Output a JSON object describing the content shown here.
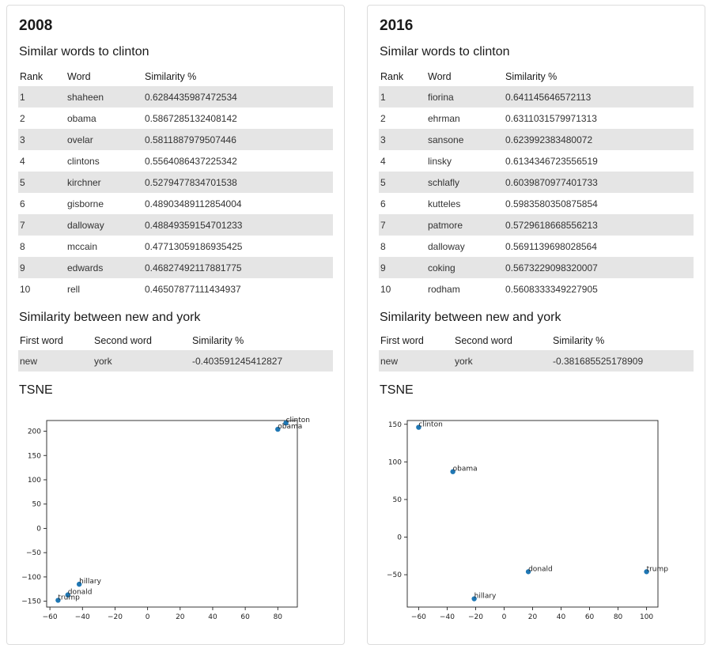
{
  "panels": [
    {
      "year": "2008",
      "similar_heading": "Similar words to clinton",
      "similar_columns": [
        "Rank",
        "Word",
        "Similarity %"
      ],
      "similar_rows": [
        [
          "1",
          "shaheen",
          "0.6284435987472534"
        ],
        [
          "2",
          "obama",
          "0.5867285132408142"
        ],
        [
          "3",
          "ovelar",
          "0.5811887979507446"
        ],
        [
          "4",
          "clintons",
          "0.5564086437225342"
        ],
        [
          "5",
          "kirchner",
          "0.5279477834701538"
        ],
        [
          "6",
          "gisborne",
          "0.48903489112854004"
        ],
        [
          "7",
          "dalloway",
          "0.48849359154701233"
        ],
        [
          "8",
          "mccain",
          "0.47713059186935425"
        ],
        [
          "9",
          "edwards",
          "0.46827492117881775"
        ],
        [
          "10",
          "rell",
          "0.46507877111434937"
        ]
      ],
      "pair_heading": "Similarity between new and york",
      "pair_columns": [
        "First word",
        "Second word",
        "Similarity %"
      ],
      "pair_rows": [
        [
          "new",
          "york",
          "-0.403591245412827"
        ]
      ],
      "tsne_heading": "TSNE"
    },
    {
      "year": "2016",
      "similar_heading": "Similar words to clinton",
      "similar_columns": [
        "Rank",
        "Word",
        "Similarity %"
      ],
      "similar_rows": [
        [
          "1",
          "fiorina",
          "0.641145646572113"
        ],
        [
          "2",
          "ehrman",
          "0.6311031579971313"
        ],
        [
          "3",
          "sansone",
          "0.623992383480072"
        ],
        [
          "4",
          "linsky",
          "0.6134346723556519"
        ],
        [
          "5",
          "schlafly",
          "0.6039870977401733"
        ],
        [
          "6",
          "kutteles",
          "0.5983580350875854"
        ],
        [
          "7",
          "patmore",
          "0.5729618668556213"
        ],
        [
          "8",
          "dalloway",
          "0.5691139698028564"
        ],
        [
          "9",
          "coking",
          "0.5673229098320007"
        ],
        [
          "10",
          "rodham",
          "0.5608333349227905"
        ]
      ],
      "pair_heading": "Similarity between new and york",
      "pair_columns": [
        "First word",
        "Second word",
        "Similarity %"
      ],
      "pair_rows": [
        [
          "new",
          "york",
          "-0.381685525178909"
        ]
      ],
      "tsne_heading": "TSNE"
    }
  ],
  "chart_data": [
    {
      "type": "scatter",
      "title": "",
      "xlabel": "",
      "ylabel": "",
      "xlim": [
        -62,
        92
      ],
      "ylim": [
        -162,
        222
      ],
      "xticks": [
        -60,
        -40,
        -20,
        0,
        20,
        40,
        60,
        80
      ],
      "yticks": [
        -150,
        -100,
        -50,
        0,
        50,
        100,
        150,
        200
      ],
      "point_color": "#1f77b4",
      "points": [
        {
          "label": "clinton",
          "x": 85,
          "y": 217
        },
        {
          "label": "obama",
          "x": 80,
          "y": 204
        },
        {
          "label": "hillary",
          "x": -42,
          "y": -115
        },
        {
          "label": "donald",
          "x": -49,
          "y": -137
        },
        {
          "label": "trump",
          "x": -55,
          "y": -148
        }
      ]
    },
    {
      "type": "scatter",
      "title": "",
      "xlabel": "",
      "ylabel": "",
      "xlim": [
        -68,
        108
      ],
      "ylim": [
        -93,
        155
      ],
      "xticks": [
        -60,
        -40,
        -20,
        0,
        20,
        40,
        60,
        80,
        100
      ],
      "yticks": [
        -50,
        0,
        50,
        100,
        150
      ],
      "point_color": "#1f77b4",
      "points": [
        {
          "label": "clinton",
          "x": -60,
          "y": 146
        },
        {
          "label": "obama",
          "x": -36,
          "y": 87
        },
        {
          "label": "donald",
          "x": 17,
          "y": -46
        },
        {
          "label": "trump",
          "x": 100,
          "y": -46
        },
        {
          "label": "hillary",
          "x": -21,
          "y": -82
        }
      ]
    }
  ]
}
